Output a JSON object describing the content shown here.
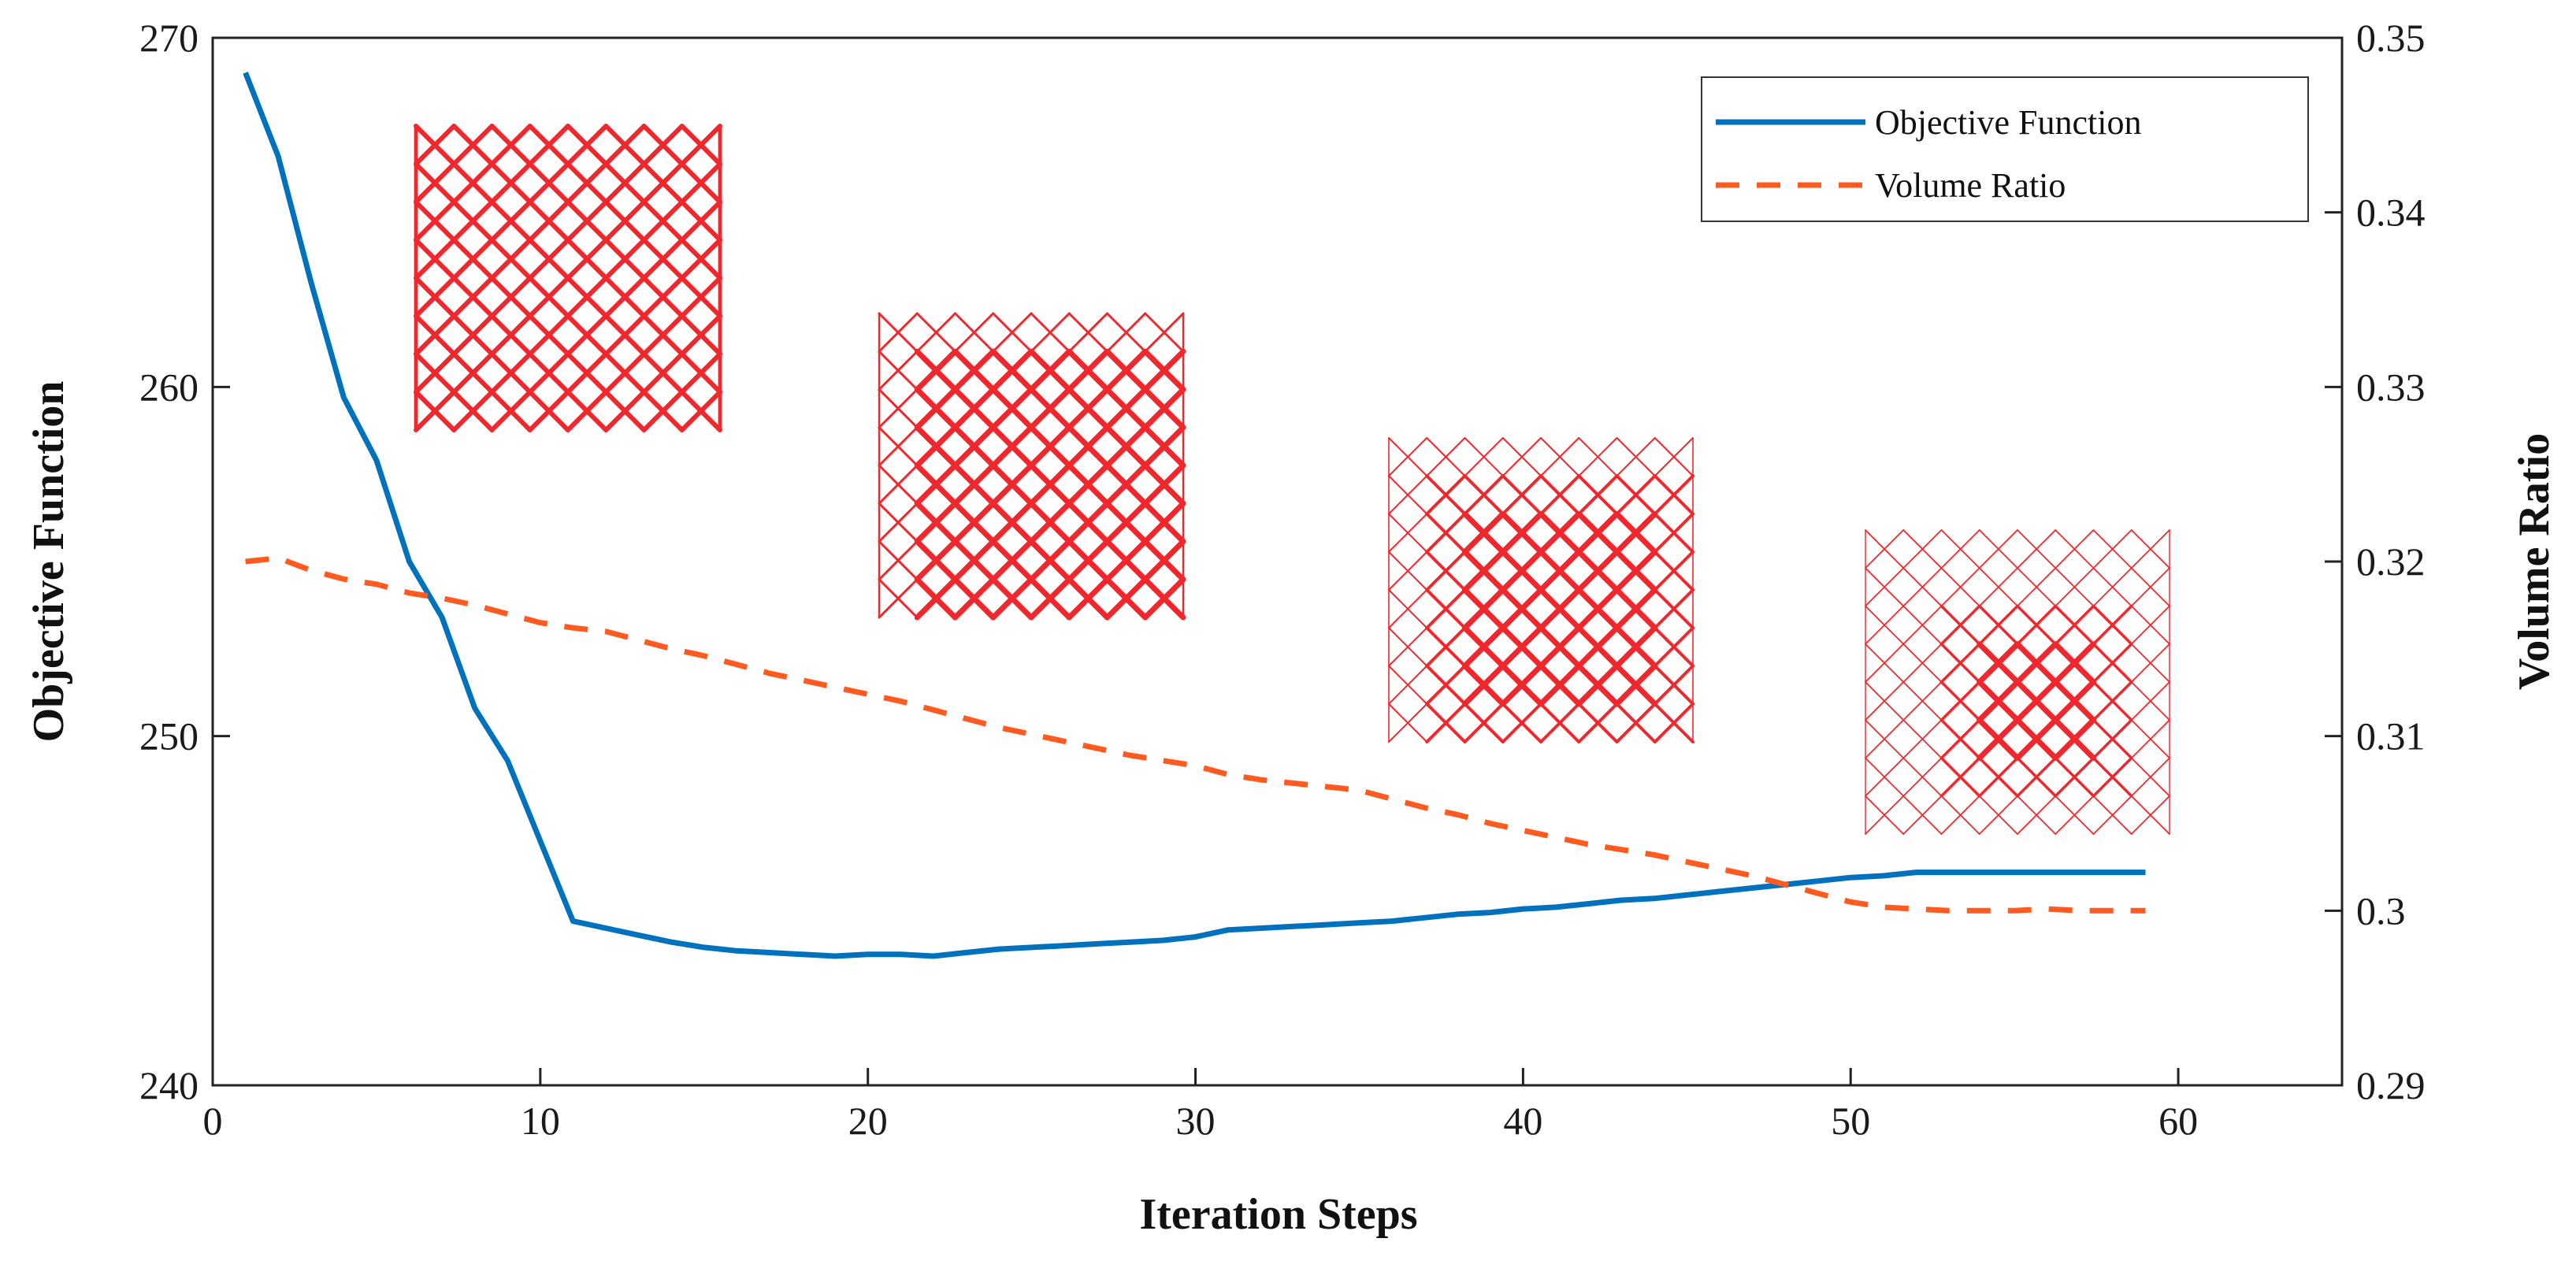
{
  "chart_data": {
    "type": "line",
    "title": "",
    "xlabel": "Iteration Steps",
    "ylabel_left": "Objective Function",
    "ylabel_right": "Volume Ratio",
    "xlim": [
      0,
      65
    ],
    "ylim_left": [
      240,
      270
    ],
    "ylim_right": [
      0.29,
      0.35
    ],
    "x_ticks": [
      0,
      10,
      20,
      30,
      40,
      50,
      60
    ],
    "y_left_ticks": [
      240,
      250,
      260,
      270
    ],
    "y_right_ticks": [
      0.29,
      0.3,
      0.31,
      0.32,
      0.33,
      0.34,
      0.35
    ],
    "grid": false,
    "legend_position": "top-right",
    "colors": {
      "objective": "#0072BD",
      "volume": "#FF5A1F",
      "lattice": "#F0282D",
      "axis": "#222222"
    },
    "series": [
      {
        "name": "Objective Function",
        "axis": "left",
        "style": "solid",
        "x": [
          1,
          2,
          3,
          4,
          5,
          6,
          7,
          8,
          9,
          10,
          11,
          12,
          13,
          14,
          15,
          16,
          17,
          18,
          19,
          20,
          21,
          22,
          23,
          24,
          25,
          26,
          27,
          28,
          29,
          30,
          31,
          32,
          33,
          34,
          35,
          36,
          37,
          38,
          39,
          40,
          41,
          42,
          43,
          44,
          45,
          46,
          47,
          48,
          49,
          50,
          51,
          52,
          53,
          54,
          55,
          56,
          57,
          58,
          59
        ],
        "values": [
          269.0,
          266.6,
          263.0,
          259.7,
          257.9,
          255.0,
          253.4,
          250.8,
          249.3,
          247.0,
          244.7,
          244.5,
          244.3,
          244.1,
          243.95,
          243.85,
          243.8,
          243.75,
          243.7,
          243.75,
          243.75,
          243.7,
          243.8,
          243.9,
          243.95,
          244.0,
          244.05,
          244.1,
          244.15,
          244.25,
          244.45,
          244.5,
          244.55,
          244.6,
          244.65,
          244.7,
          244.8,
          244.9,
          244.95,
          245.05,
          245.1,
          245.2,
          245.3,
          245.35,
          245.45,
          245.55,
          245.65,
          245.75,
          245.85,
          245.95,
          246.0,
          246.1,
          246.1,
          246.1,
          246.1,
          246.1,
          246.1,
          246.1,
          246.1
        ]
      },
      {
        "name": "Volume Ratio",
        "axis": "right",
        "style": "dashed",
        "x": [
          1,
          2,
          3,
          4,
          5,
          6,
          7,
          8,
          9,
          10,
          11,
          12,
          13,
          14,
          15,
          16,
          17,
          18,
          19,
          20,
          21,
          22,
          23,
          24,
          25,
          26,
          27,
          28,
          29,
          30,
          31,
          32,
          33,
          34,
          35,
          36,
          37,
          38,
          39,
          40,
          41,
          42,
          43,
          44,
          45,
          46,
          47,
          48,
          49,
          50,
          51,
          52,
          53,
          54,
          55,
          56,
          57,
          58,
          59
        ],
        "values": [
          0.32,
          0.3202,
          0.3195,
          0.319,
          0.3187,
          0.3182,
          0.3179,
          0.3175,
          0.317,
          0.3165,
          0.3162,
          0.316,
          0.3155,
          0.315,
          0.3146,
          0.3141,
          0.3136,
          0.3132,
          0.3128,
          0.3124,
          0.312,
          0.3115,
          0.311,
          0.3105,
          0.3101,
          0.3097,
          0.3093,
          0.3089,
          0.3086,
          0.3083,
          0.3078,
          0.3075,
          0.3073,
          0.3071,
          0.3069,
          0.3064,
          0.3059,
          0.3055,
          0.305,
          0.3046,
          0.3042,
          0.3038,
          0.3035,
          0.3032,
          0.3028,
          0.3024,
          0.302,
          0.3015,
          0.301,
          0.3005,
          0.3002,
          0.3001,
          0.3,
          0.3,
          0.3,
          0.3001,
          0.3,
          0.3,
          0.3
        ]
      }
    ],
    "inset_lattices": [
      {
        "name": "lattice-inset-1",
        "weight": "uniform-thick"
      },
      {
        "name": "lattice-inset-2",
        "weight": "thick-center"
      },
      {
        "name": "lattice-inset-3",
        "weight": "thick-center-thin-edges"
      },
      {
        "name": "lattice-inset-4",
        "weight": "thick-core-thin-edges"
      }
    ]
  }
}
